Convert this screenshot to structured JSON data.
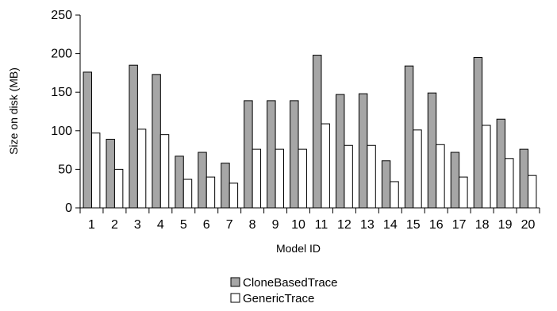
{
  "chart_data": {
    "type": "bar",
    "xlabel": "Model ID",
    "ylabel": "Size on disk (MB)",
    "ylim": [
      0,
      250
    ],
    "yticks": [
      0,
      50,
      100,
      150,
      200,
      250
    ],
    "grid": false,
    "legend_position": "bottom",
    "categories": [
      "1",
      "2",
      "3",
      "4",
      "5",
      "6",
      "7",
      "8",
      "9",
      "10",
      "11",
      "12",
      "13",
      "14",
      "15",
      "16",
      "17",
      "18",
      "19",
      "20"
    ],
    "series": [
      {
        "name": "CloneBasedTrace",
        "color": "#a6a6a6",
        "values": [
          176,
          89,
          185,
          173,
          67,
          72,
          58,
          139,
          139,
          139,
          198,
          147,
          148,
          61,
          184,
          149,
          72,
          195,
          115,
          76
        ]
      },
      {
        "name": "GenericTrace",
        "color": "#ffffff",
        "values": [
          97,
          50,
          102,
          95,
          37,
          40,
          32,
          76,
          76,
          76,
          109,
          81,
          81,
          34,
          101,
          82,
          40,
          107,
          64,
          42
        ]
      }
    ]
  }
}
